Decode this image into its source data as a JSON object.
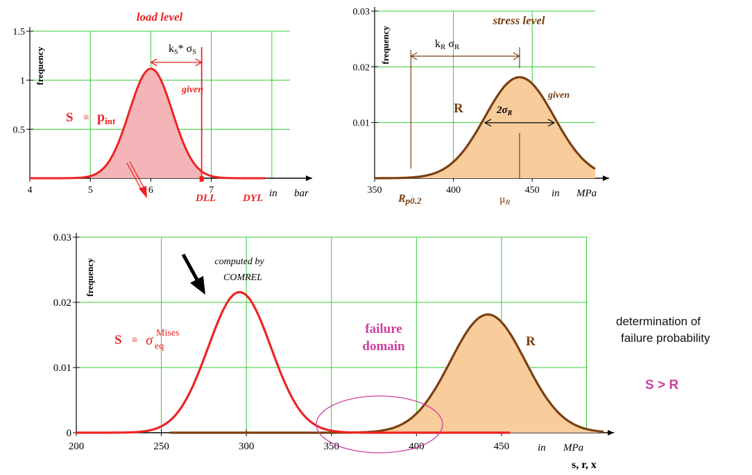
{
  "side_text": {
    "line1": "determination of",
    "line2": "failure probability",
    "condition": "S > R"
  },
  "colors": {
    "grid": "#33cc33",
    "axis": "#000000",
    "load": "#ee2222",
    "load_fill": "#f5b4b8",
    "resistance": "#7a3e10",
    "resistance_fill": "#f9cc9c",
    "failure": "#cc3ea0"
  },
  "chart_data": [
    {
      "type": "area",
      "title": "load level",
      "ylabel": "frequency",
      "xunit_prefix": "in",
      "xunit": "bar",
      "xlim": [
        4,
        8.3
      ],
      "ylim": [
        0,
        1.5
      ],
      "xgrid": [
        4,
        5,
        6,
        7,
        8
      ],
      "xticks": [
        4,
        5,
        6,
        7
      ],
      "yticks": [
        0.5,
        1,
        1.5
      ],
      "xtick_labels": [
        "4",
        "5",
        "6",
        "7"
      ],
      "ytick_labels": [
        "0.5",
        "1",
        "1.5"
      ],
      "grid": true,
      "series": [
        {
          "kind": "normal",
          "mean": 6.0,
          "sd": 0.357,
          "x_start": 4.0,
          "x_end": 7.9,
          "fill_to": 6.84
        }
      ],
      "annotations": {
        "given": "given",
        "spread_main": "k",
        "spread_sub1": "S",
        "spread_mid": "* σ",
        "spread_sub2": "S",
        "variable": "S",
        "equiv": "≡",
        "symbol_main": "p",
        "symbol_sub": "int",
        "dll": "DLL",
        "dyl": "DYL"
      },
      "dll_x": 6.84
    },
    {
      "type": "area",
      "title": "stress level",
      "ylabel": "frequency",
      "xunit_prefix": "in",
      "xunit": "MPa",
      "xlim": [
        350,
        490
      ],
      "ylim": [
        0,
        0.03
      ],
      "xgrid": [
        350,
        400,
        450,
        500
      ],
      "xticks": [
        350,
        400,
        450
      ],
      "yticks": [
        0.01,
        0.02,
        0.03
      ],
      "xtick_labels": [
        "350",
        "400",
        "450"
      ],
      "ytick_labels": [
        "0.01",
        "0.02",
        "0.03"
      ],
      "grid": true,
      "series": [
        {
          "kind": "normal",
          "mean": 442,
          "sd": 22,
          "x_start": 350,
          "x_end": 490,
          "x_draw_start": 350
        }
      ],
      "annotations": {
        "given": "given",
        "spread_k": "k",
        "spread_k_sub": "R",
        "spread_sigma": "σ",
        "spread_sigma_sub": "R",
        "variable": "R",
        "two_sigma": "2σ",
        "two_sigma_sub": "R",
        "rp_main": "R",
        "rp_sub": "p0.2",
        "mu_main": "μ",
        "mu_sub": "R"
      },
      "rp_x": 373,
      "mu_x": 442
    },
    {
      "type": "area",
      "ylabel": "frequency",
      "xunit_prefix": "in",
      "xunit": "MPa",
      "xaxis_vars": "s, r, x",
      "xlim": [
        200,
        510
      ],
      "ylim": [
        0,
        0.03
      ],
      "xgrid": [
        200,
        250,
        300,
        350,
        400,
        450,
        500
      ],
      "xticks": [
        200,
        250,
        300,
        350,
        400,
        450
      ],
      "yticks": [
        0,
        0.01,
        0.02,
        0.03
      ],
      "xtick_labels": [
        "200",
        "250",
        "300",
        "350",
        "400",
        "450"
      ],
      "ytick_labels": [
        "0",
        "0.01",
        "0.02",
        "0.03"
      ],
      "grid": true,
      "series": [
        {
          "kind": "normal",
          "mean": 296,
          "sd": 18.5,
          "x_start": 200,
          "x_end": 455,
          "role": "S"
        },
        {
          "kind": "normal",
          "mean": 442,
          "sd": 22,
          "x_start": 255,
          "x_end": 510,
          "role": "R"
        }
      ],
      "annotations": {
        "computed1": "computed by",
        "computed2": "COMREL",
        "variable_s": "S",
        "equiv": "≡",
        "sigma": "σ",
        "sigma_sub": "eq",
        "sigma_sup": "Mises",
        "failure1": "failure",
        "failure2": "domain",
        "variable_r": "R"
      }
    }
  ]
}
